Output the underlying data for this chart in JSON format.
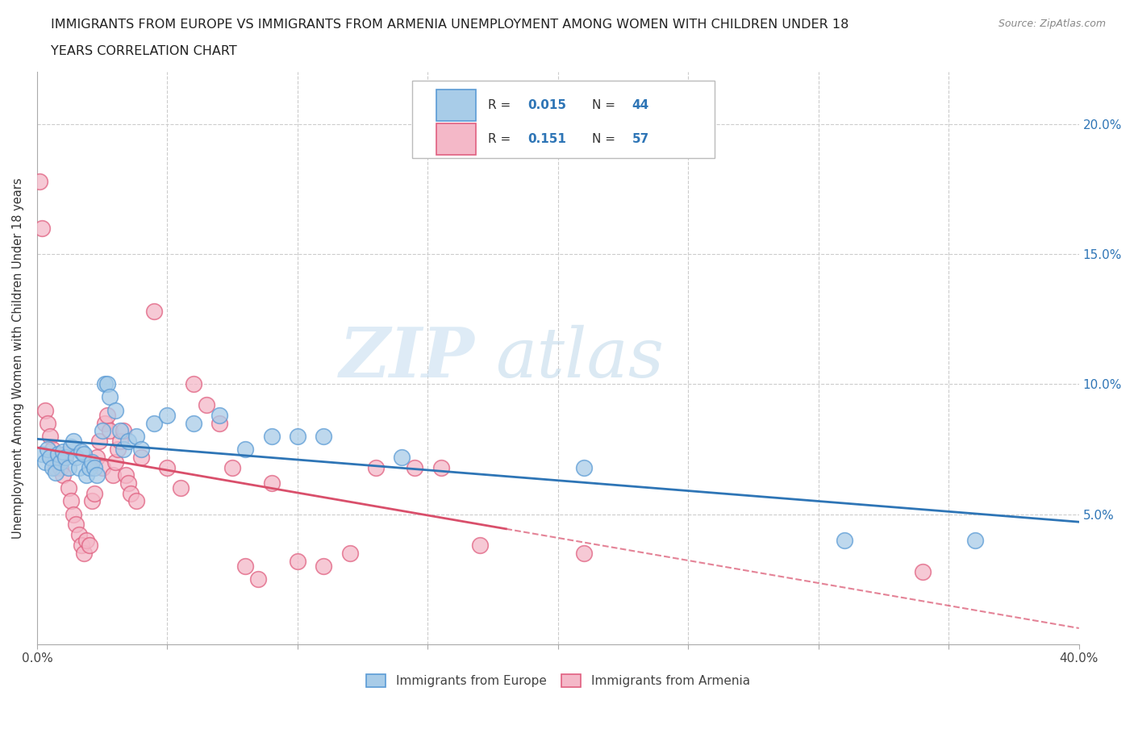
{
  "title_line1": "IMMIGRANTS FROM EUROPE VS IMMIGRANTS FROM ARMENIA UNEMPLOYMENT AMONG WOMEN WITH CHILDREN UNDER 18",
  "title_line2": "YEARS CORRELATION CHART",
  "source": "Source: ZipAtlas.com",
  "ylabel": "Unemployment Among Women with Children Under 18 years",
  "xlim": [
    0.0,
    0.4
  ],
  "ylim": [
    0.0,
    0.22
  ],
  "ytick_pos": [
    0.0,
    0.05,
    0.1,
    0.15,
    0.2
  ],
  "ytick_labels": [
    "",
    "5.0%",
    "10.0%",
    "15.0%",
    "20.0%"
  ],
  "xtick_pos": [
    0.0,
    0.05,
    0.1,
    0.15,
    0.2,
    0.25,
    0.3,
    0.35,
    0.4
  ],
  "xtick_labels": [
    "0.0%",
    "",
    "",
    "",
    "",
    "",
    "",
    "",
    "40.0%"
  ],
  "legend_label_blue": "Immigrants from Europe",
  "legend_label_pink": "Immigrants from Armenia",
  "color_blue_fill": "#a8cce8",
  "color_blue_edge": "#5b9bd5",
  "color_pink_fill": "#f4b8c8",
  "color_pink_edge": "#e06080",
  "color_blue_line": "#2e75b6",
  "color_pink_line": "#d94f6b",
  "watermark_zip": "ZIP",
  "watermark_atlas": "atlas",
  "blue_points": [
    [
      0.002,
      0.073
    ],
    [
      0.003,
      0.07
    ],
    [
      0.004,
      0.075
    ],
    [
      0.005,
      0.072
    ],
    [
      0.006,
      0.068
    ],
    [
      0.007,
      0.066
    ],
    [
      0.008,
      0.073
    ],
    [
      0.009,
      0.07
    ],
    [
      0.01,
      0.074
    ],
    [
      0.011,
      0.072
    ],
    [
      0.012,
      0.068
    ],
    [
      0.013,
      0.076
    ],
    [
      0.014,
      0.078
    ],
    [
      0.015,
      0.072
    ],
    [
      0.016,
      0.068
    ],
    [
      0.017,
      0.074
    ],
    [
      0.018,
      0.073
    ],
    [
      0.019,
      0.065
    ],
    [
      0.02,
      0.068
    ],
    [
      0.021,
      0.07
    ],
    [
      0.022,
      0.068
    ],
    [
      0.023,
      0.065
    ],
    [
      0.025,
      0.082
    ],
    [
      0.026,
      0.1
    ],
    [
      0.027,
      0.1
    ],
    [
      0.028,
      0.095
    ],
    [
      0.03,
      0.09
    ],
    [
      0.032,
      0.082
    ],
    [
      0.033,
      0.075
    ],
    [
      0.035,
      0.078
    ],
    [
      0.038,
      0.08
    ],
    [
      0.04,
      0.075
    ],
    [
      0.045,
      0.085
    ],
    [
      0.05,
      0.088
    ],
    [
      0.06,
      0.085
    ],
    [
      0.07,
      0.088
    ],
    [
      0.08,
      0.075
    ],
    [
      0.09,
      0.08
    ],
    [
      0.1,
      0.08
    ],
    [
      0.11,
      0.08
    ],
    [
      0.14,
      0.072
    ],
    [
      0.21,
      0.068
    ],
    [
      0.31,
      0.04
    ],
    [
      0.36,
      0.04
    ]
  ],
  "pink_points": [
    [
      0.001,
      0.178
    ],
    [
      0.002,
      0.16
    ],
    [
      0.003,
      0.09
    ],
    [
      0.004,
      0.085
    ],
    [
      0.005,
      0.08
    ],
    [
      0.006,
      0.075
    ],
    [
      0.007,
      0.068
    ],
    [
      0.008,
      0.072
    ],
    [
      0.009,
      0.068
    ],
    [
      0.01,
      0.065
    ],
    [
      0.011,
      0.073
    ],
    [
      0.012,
      0.06
    ],
    [
      0.013,
      0.055
    ],
    [
      0.014,
      0.05
    ],
    [
      0.015,
      0.046
    ],
    [
      0.016,
      0.042
    ],
    [
      0.017,
      0.038
    ],
    [
      0.018,
      0.035
    ],
    [
      0.019,
      0.04
    ],
    [
      0.02,
      0.038
    ],
    [
      0.021,
      0.055
    ],
    [
      0.022,
      0.058
    ],
    [
      0.023,
      0.072
    ],
    [
      0.024,
      0.078
    ],
    [
      0.025,
      0.068
    ],
    [
      0.026,
      0.085
    ],
    [
      0.027,
      0.088
    ],
    [
      0.028,
      0.082
    ],
    [
      0.029,
      0.065
    ],
    [
      0.03,
      0.07
    ],
    [
      0.031,
      0.075
    ],
    [
      0.032,
      0.078
    ],
    [
      0.033,
      0.082
    ],
    [
      0.034,
      0.065
    ],
    [
      0.035,
      0.062
    ],
    [
      0.036,
      0.058
    ],
    [
      0.038,
      0.055
    ],
    [
      0.04,
      0.072
    ],
    [
      0.045,
      0.128
    ],
    [
      0.05,
      0.068
    ],
    [
      0.055,
      0.06
    ],
    [
      0.06,
      0.1
    ],
    [
      0.065,
      0.092
    ],
    [
      0.07,
      0.085
    ],
    [
      0.075,
      0.068
    ],
    [
      0.08,
      0.03
    ],
    [
      0.085,
      0.025
    ],
    [
      0.09,
      0.062
    ],
    [
      0.1,
      0.032
    ],
    [
      0.11,
      0.03
    ],
    [
      0.12,
      0.035
    ],
    [
      0.13,
      0.068
    ],
    [
      0.145,
      0.068
    ],
    [
      0.155,
      0.068
    ],
    [
      0.17,
      0.038
    ],
    [
      0.21,
      0.035
    ],
    [
      0.34,
      0.028
    ]
  ]
}
